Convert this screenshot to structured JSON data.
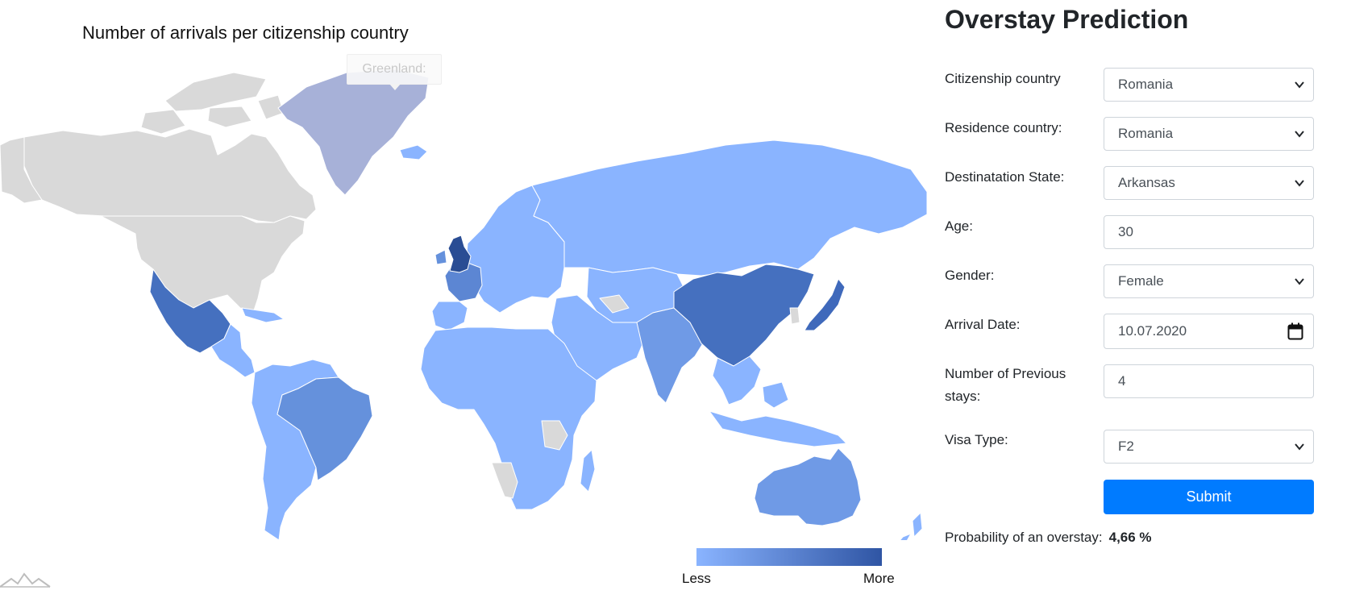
{
  "map": {
    "title": "Number of arrivals per citizenship country",
    "tooltip": "Greenland:",
    "legend": {
      "low_label": "Less",
      "high_label": "More",
      "low_color": "#8ab4ff",
      "high_color": "#2f55a4"
    },
    "colors": {
      "no_data": "#d9d9d9",
      "border": "#ffffff"
    },
    "countries": [
      {
        "name": "Greenland",
        "level": "greenland",
        "color": "#a7b1d8"
      },
      {
        "name": "United Kingdom",
        "level": "highest",
        "color": "#2a4d94"
      },
      {
        "name": "China",
        "level": "high",
        "color": "#4570bf"
      },
      {
        "name": "Japan",
        "level": "high",
        "color": "#3f69bb"
      },
      {
        "name": "Mexico",
        "level": "high",
        "color": "#4570bf"
      },
      {
        "name": "Brazil",
        "level": "medium-high",
        "color": "#6591dc"
      },
      {
        "name": "France",
        "level": "medium-high",
        "color": "#5c86d3"
      },
      {
        "name": "India",
        "level": "medium",
        "color": "#6f9ae6"
      },
      {
        "name": "Australia",
        "level": "medium",
        "color": "#6f9ae6"
      },
      {
        "name": "Russia",
        "level": "low",
        "color": "#8ab4ff"
      },
      {
        "name": "Canada",
        "level": "none",
        "color": "#d9d9d9"
      },
      {
        "name": "United States",
        "level": "none",
        "color": "#d9d9d9"
      }
    ]
  },
  "form": {
    "title": "Overstay Prediction",
    "fields": {
      "citizenship": {
        "label": "Citizenship country",
        "value": "Romania"
      },
      "residence": {
        "label": "Residence country:",
        "value": "Romania"
      },
      "destination": {
        "label": "Destinatation State:",
        "value": "Arkansas"
      },
      "age": {
        "label": "Age:",
        "value": "30"
      },
      "gender": {
        "label": "Gender:",
        "value": "Female"
      },
      "arrival": {
        "label": "Arrival Date:",
        "value": "10.07.2020"
      },
      "prev_stays": {
        "label": "Number of Previous stays:",
        "value": "4"
      },
      "visa": {
        "label": "Visa Type:",
        "value": "F2"
      }
    },
    "submit_label": "Submit",
    "result_label": "Probability of an overstay:",
    "result_value": "4,66 %",
    "accent_color": "#007bff"
  }
}
